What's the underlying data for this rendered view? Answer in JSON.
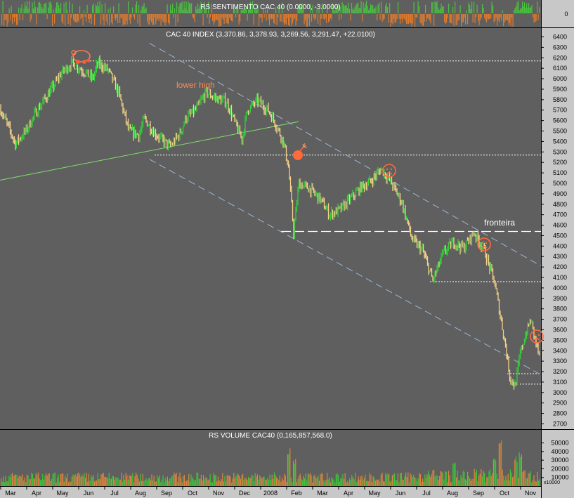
{
  "chart_data": [
    {
      "type": "bar",
      "title": "RS SENTIMENTO CAC 40 (0.0000, -3.0000)",
      "y_ticks": [
        "0"
      ],
      "colors": {
        "positive": "#49c341",
        "negative": "#e07a2c"
      }
    },
    {
      "type": "candlestick",
      "title": "CAC 40 INDEX (3,370.86, 3,378.93, 3,269.56, 3,291.47, +22.0100)",
      "last_bar": {
        "open": 3370.86,
        "high": 3378.93,
        "low": 3269.56,
        "close": 3291.47,
        "change": 22.01
      },
      "ylim": [
        2650,
        6500
      ],
      "y_ticks": [
        "6400",
        "6300",
        "6200",
        "6100",
        "6000",
        "5900",
        "5800",
        "5700",
        "5600",
        "5500",
        "5400",
        "5300",
        "5200",
        "5100",
        "5000",
        "4900",
        "4800",
        "4700",
        "4600",
        "4500",
        "4400",
        "4300",
        "4200",
        "4100",
        "4000",
        "3900",
        "3800",
        "3700",
        "3600",
        "3500",
        "3400",
        "3300",
        "3200",
        "3100",
        "3000",
        "2900",
        "2800",
        "2700"
      ],
      "x_ticks": [
        "Mar",
        "Apr",
        "May",
        "Jun",
        "Jul",
        "Aug",
        "Sep",
        "Oct",
        "Nov",
        "Dec",
        "2008",
        "Feb",
        "Mar",
        "Apr",
        "May",
        "Jun",
        "Jul",
        "Aug",
        "Sep",
        "Oct",
        "Nov"
      ],
      "price_path": [
        [
          0,
          5720
        ],
        [
          3,
          5380
        ],
        [
          5,
          5500
        ],
        [
          7,
          5680
        ],
        [
          10,
          5900
        ],
        [
          12,
          6060
        ],
        [
          14,
          6150
        ],
        [
          16,
          6080
        ],
        [
          18,
          6000
        ],
        [
          19,
          6150
        ],
        [
          21,
          6080
        ],
        [
          23,
          5870
        ],
        [
          25,
          5500
        ],
        [
          27,
          5460
        ],
        [
          28,
          5620
        ],
        [
          30,
          5480
        ],
        [
          33,
          5350
        ],
        [
          35,
          5480
        ],
        [
          36,
          5620
        ],
        [
          38,
          5700
        ],
        [
          40,
          5870
        ],
        [
          42,
          5810
        ],
        [
          44,
          5780
        ],
        [
          46,
          5530
        ],
        [
          47,
          5420
        ],
        [
          48,
          5700
        ],
        [
          50,
          5790
        ],
        [
          52,
          5700
        ],
        [
          53,
          5620
        ],
        [
          55,
          5400
        ],
        [
          56,
          5150
        ],
        [
          57,
          4530
        ],
        [
          58,
          5000
        ],
        [
          60,
          4950
        ],
        [
          62,
          4860
        ],
        [
          64,
          4700
        ],
        [
          66,
          4750
        ],
        [
          68,
          4850
        ],
        [
          70,
          4960
        ],
        [
          72,
          5020
        ],
        [
          74,
          5140
        ],
        [
          76,
          5000
        ],
        [
          78,
          4820
        ],
        [
          80,
          4460
        ],
        [
          82,
          4360
        ],
        [
          84,
          4070
        ],
        [
          86,
          4330
        ],
        [
          88,
          4440
        ],
        [
          90,
          4380
        ],
        [
          92,
          4530
        ],
        [
          94,
          4360
        ],
        [
          96,
          4050
        ],
        [
          98,
          3480
        ],
        [
          99,
          3140
        ],
        [
          100,
          3060
        ],
        [
          101,
          3380
        ],
        [
          102,
          3550
        ],
        [
          103,
          3700
        ],
        [
          104,
          3480
        ],
        [
          105,
          3291
        ]
      ],
      "horizontal_levels": [
        {
          "value": 6170,
          "style": "dotted"
        },
        {
          "value": 5270,
          "style": "dotted"
        },
        {
          "value": 4540,
          "style": "dashed"
        },
        {
          "value": 4060,
          "style": "dotted"
        },
        {
          "value": 3180,
          "style": "dotted"
        },
        {
          "value": 3080,
          "style": "dotted"
        }
      ],
      "trendlines": [
        {
          "from": [
            0,
            5030
          ],
          "to": [
            58,
            5590
          ],
          "style": "solid",
          "color": "#7fe06a"
        },
        {
          "from": [
            29,
            6340
          ],
          "to": [
            105,
            4210
          ],
          "style": "dashed",
          "color": "#9ab8d8"
        },
        {
          "from": [
            29,
            5230
          ],
          "to": [
            105,
            3170
          ],
          "style": "dashed",
          "color": "#9ab8d8"
        }
      ],
      "annotations": [
        "lower high",
        "fronteira"
      ]
    },
    {
      "type": "bar",
      "title": "RS VOLUME CAC40 (0,165,857,568.0)",
      "y_ticks": [
        "50000",
        "40000",
        "30000",
        "20000",
        "10000"
      ],
      "unit_label": "x10000",
      "ylim": [
        0,
        57000
      ],
      "spikes": [
        [
          56,
          45000
        ],
        [
          57,
          32000
        ],
        [
          88,
          28000
        ],
        [
          96,
          33000
        ],
        [
          97,
          53000
        ],
        [
          100,
          34000
        ],
        [
          101,
          40000
        ]
      ]
    }
  ]
}
